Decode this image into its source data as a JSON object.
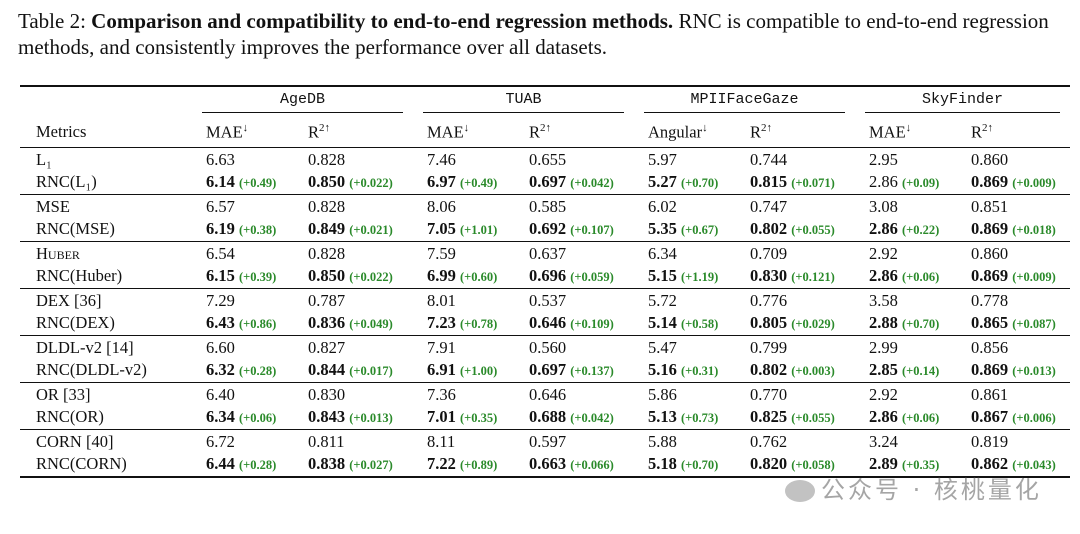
{
  "caption": {
    "label": "Table 2:",
    "bold": "Comparison and compatibility to end-to-end regression methods.",
    "rnc": "RNC",
    "rest": " is compatible to end-to-end regression methods, and consistently improves the performance over all datasets."
  },
  "metrics_header": "Metrics",
  "groups": [
    "AgeDB",
    "TUAB",
    "MPIIFaceGaze",
    "SkyFinder"
  ],
  "subheaders": [
    {
      "name": "MAE",
      "dir": "↓"
    },
    {
      "name": "R",
      "sup": "2↑"
    },
    {
      "name": "MAE",
      "dir": "↓"
    },
    {
      "name": "R",
      "sup": "2↑"
    },
    {
      "name": "Angular",
      "dir": "↓"
    },
    {
      "name": "R",
      "sup": "2↑"
    },
    {
      "name": "MAE",
      "dir": "↓"
    },
    {
      "name": "R",
      "sup": "2↑"
    }
  ],
  "rows": [
    {
      "base": "L₁",
      "rnc": "RNC(L₁)",
      "base_vals": [
        "6.63",
        "0.828",
        "7.46",
        "0.655",
        "5.97",
        "0.744",
        "2.95",
        "0.860"
      ],
      "rnc_vals": [
        "6.14",
        "0.850",
        "6.97",
        "0.697",
        "5.27",
        "0.815",
        "2.86",
        "0.869"
      ],
      "rnc_deltas": [
        "(+0.49)",
        "(+0.022)",
        "(+0.49)",
        "(+0.042)",
        "(+0.70)",
        "(+0.071)",
        "(+0.09)",
        "(+0.009)"
      ],
      "rnc_bold": [
        true,
        true,
        true,
        true,
        true,
        true,
        false,
        true
      ]
    },
    {
      "base": "MSE",
      "rnc": "RNC(MSE)",
      "base_vals": [
        "6.57",
        "0.828",
        "8.06",
        "0.585",
        "6.02",
        "0.747",
        "3.08",
        "0.851"
      ],
      "rnc_vals": [
        "6.19",
        "0.849",
        "7.05",
        "0.692",
        "5.35",
        "0.802",
        "2.86",
        "0.869"
      ],
      "rnc_deltas": [
        "(+0.38)",
        "(+0.021)",
        "(+1.01)",
        "(+0.107)",
        "(+0.67)",
        "(+0.055)",
        "(+0.22)",
        "(+0.018)"
      ],
      "rnc_bold": [
        true,
        true,
        true,
        true,
        true,
        true,
        true,
        true
      ]
    },
    {
      "base": "Huber",
      "rnc": "RNC(Huber)",
      "base_vals": [
        "6.54",
        "0.828",
        "7.59",
        "0.637",
        "6.34",
        "0.709",
        "2.92",
        "0.860"
      ],
      "rnc_vals": [
        "6.15",
        "0.850",
        "6.99",
        "0.696",
        "5.15",
        "0.830",
        "2.86",
        "0.869"
      ],
      "rnc_deltas": [
        "(+0.39)",
        "(+0.022)",
        "(+0.60)",
        "(+0.059)",
        "(+1.19)",
        "(+0.121)",
        "(+0.06)",
        "(+0.009)"
      ],
      "rnc_bold": [
        true,
        true,
        true,
        true,
        true,
        true,
        true,
        true
      ]
    },
    {
      "base": "DEX [36]",
      "rnc": "RNC(DEX)",
      "base_vals": [
        "7.29",
        "0.787",
        "8.01",
        "0.537",
        "5.72",
        "0.776",
        "3.58",
        "0.778"
      ],
      "rnc_vals": [
        "6.43",
        "0.836",
        "7.23",
        "0.646",
        "5.14",
        "0.805",
        "2.88",
        "0.865"
      ],
      "rnc_deltas": [
        "(+0.86)",
        "(+0.049)",
        "(+0.78)",
        "(+0.109)",
        "(+0.58)",
        "(+0.029)",
        "(+0.70)",
        "(+0.087)"
      ],
      "rnc_bold": [
        true,
        true,
        true,
        true,
        true,
        true,
        true,
        true
      ]
    },
    {
      "base": "DLDL-v2 [14]",
      "rnc": "RNC(DLDL-v2)",
      "base_vals": [
        "6.60",
        "0.827",
        "7.91",
        "0.560",
        "5.47",
        "0.799",
        "2.99",
        "0.856"
      ],
      "rnc_vals": [
        "6.32",
        "0.844",
        "6.91",
        "0.697",
        "5.16",
        "0.802",
        "2.85",
        "0.869"
      ],
      "rnc_deltas": [
        "(+0.28)",
        "(+0.017)",
        "(+1.00)",
        "(+0.137)",
        "(+0.31)",
        "(+0.003)",
        "(+0.14)",
        "(+0.013)"
      ],
      "rnc_bold": [
        true,
        true,
        true,
        true,
        true,
        true,
        true,
        true
      ]
    },
    {
      "base": "OR [33]",
      "rnc": "RNC(OR)",
      "base_vals": [
        "6.40",
        "0.830",
        "7.36",
        "0.646",
        "5.86",
        "0.770",
        "2.92",
        "0.861"
      ],
      "rnc_vals": [
        "6.34",
        "0.843",
        "7.01",
        "0.688",
        "5.13",
        "0.825",
        "2.86",
        "0.867"
      ],
      "rnc_deltas": [
        "(+0.06)",
        "(+0.013)",
        "(+0.35)",
        "(+0.042)",
        "(+0.73)",
        "(+0.055)",
        "(+0.06)",
        "(+0.006)"
      ],
      "rnc_bold": [
        true,
        true,
        true,
        true,
        true,
        true,
        true,
        true
      ]
    },
    {
      "base": "CORN [40]",
      "rnc": "RNC(CORN)",
      "base_vals": [
        "6.72",
        "0.811",
        "8.11",
        "0.597",
        "5.88",
        "0.762",
        "3.24",
        "0.819"
      ],
      "rnc_vals": [
        "6.44",
        "0.838",
        "7.22",
        "0.663",
        "5.18",
        "0.820",
        "2.89",
        "0.862"
      ],
      "rnc_deltas": [
        "(+0.28)",
        "(+0.027)",
        "(+0.89)",
        "(+0.066)",
        "(+0.70)",
        "(+0.058)",
        "(+0.35)",
        "(+0.043)"
      ],
      "rnc_bold": [
        true,
        true,
        true,
        true,
        true,
        true,
        true,
        true
      ]
    }
  ],
  "watermark": "公众号 · 核桃量化",
  "colors": {
    "delta_green": "#2a8a2a"
  }
}
